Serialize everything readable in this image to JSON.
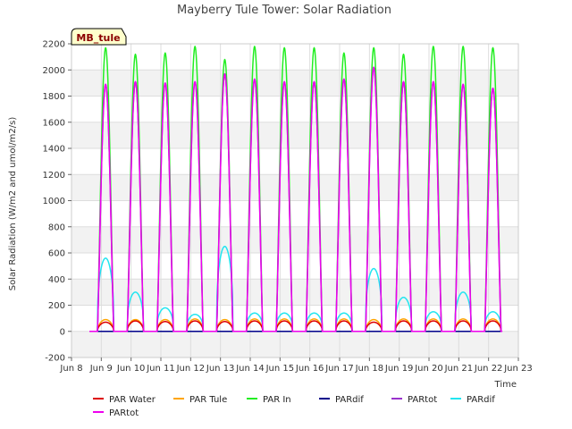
{
  "chart_data": {
    "type": "line",
    "title": "Mayberry Tule Tower: Solar Radiation",
    "xlabel": "Time",
    "ylabel": "Solar Radiation (W/m2 and umol/m2/s)",
    "site_tag": "MB_tule",
    "xlim": [
      8,
      23
    ],
    "ylim": [
      -200,
      2200
    ],
    "x_ticks": [
      8,
      9,
      10,
      11,
      12,
      13,
      14,
      15,
      16,
      17,
      18,
      19,
      20,
      21,
      22,
      23
    ],
    "x_tick_labels": [
      "Jun 8",
      "Jun 9",
      "Jun 10",
      "Jun 11",
      "Jun 12",
      "Jun 13",
      "Jun 14",
      "Jun 15",
      "Jun 16",
      "Jun 17",
      "Jun 18",
      "Jun 19",
      "Jun 20",
      "Jun 21",
      "Jun 22",
      "Jun 23"
    ],
    "y_ticks": [
      -200,
      0,
      200,
      400,
      600,
      800,
      1000,
      1200,
      1400,
      1600,
      1800,
      2000,
      2200
    ],
    "y_tick_labels": [
      "-200",
      "0",
      "200",
      "400",
      "600",
      "800",
      "1000",
      "1200",
      "1400",
      "1600",
      "1800",
      "2000",
      "2200"
    ],
    "grid": true,
    "legend_position": "bottom",
    "day_start": 8.6,
    "days": [
      {
        "par_in": 2170,
        "partot": 1890,
        "pardif": 560,
        "par_water": 70,
        "par_tule": 90
      },
      {
        "par_in": 2120,
        "partot": 1910,
        "pardif": 300,
        "par_water": 80,
        "par_tule": 90
      },
      {
        "par_in": 2130,
        "partot": 1900,
        "pardif": 180,
        "par_water": 75,
        "par_tule": 90
      },
      {
        "par_in": 2180,
        "partot": 1910,
        "pardif": 130,
        "par_water": 80,
        "par_tule": 95
      },
      {
        "par_in": 2080,
        "partot": 1970,
        "pardif": 650,
        "par_water": 75,
        "par_tule": 90
      },
      {
        "par_in": 2180,
        "partot": 1930,
        "pardif": 140,
        "par_water": 80,
        "par_tule": 95
      },
      {
        "par_in": 2170,
        "partot": 1910,
        "pardif": 140,
        "par_water": 80,
        "par_tule": 95
      },
      {
        "par_in": 2170,
        "partot": 1910,
        "pardif": 140,
        "par_water": 80,
        "par_tule": 95
      },
      {
        "par_in": 2130,
        "partot": 1930,
        "pardif": 140,
        "par_water": 80,
        "par_tule": 95
      },
      {
        "par_in": 2170,
        "partot": 2020,
        "pardif": 480,
        "par_water": 70,
        "par_tule": 90
      },
      {
        "par_in": 2120,
        "partot": 1910,
        "pardif": 260,
        "par_water": 80,
        "par_tule": 95
      },
      {
        "par_in": 2180,
        "partot": 1910,
        "pardif": 150,
        "par_water": 80,
        "par_tule": 95
      },
      {
        "par_in": 2180,
        "partot": 1890,
        "pardif": 300,
        "par_water": 80,
        "par_tule": 95
      },
      {
        "par_in": 2170,
        "partot": 1860,
        "pardif": 150,
        "par_water": 80,
        "par_tule": 95
      }
    ],
    "series": [
      {
        "name": "PAR Water",
        "color": "#dd0000",
        "key": "par_water"
      },
      {
        "name": "PAR Tule",
        "color": "#ffa500",
        "key": "par_tule"
      },
      {
        "name": "PAR In",
        "color": "#22ee22",
        "key": "par_in"
      },
      {
        "name": "PARdif",
        "color": "#00008b",
        "key": "zero"
      },
      {
        "name": "PARtot",
        "color": "#9932cc",
        "key": "partot"
      },
      {
        "name": "PARdif",
        "color": "#22e5f0",
        "key": "pardif"
      },
      {
        "name": "PARtot",
        "color": "#ee00ee",
        "key": "partot"
      }
    ]
  }
}
